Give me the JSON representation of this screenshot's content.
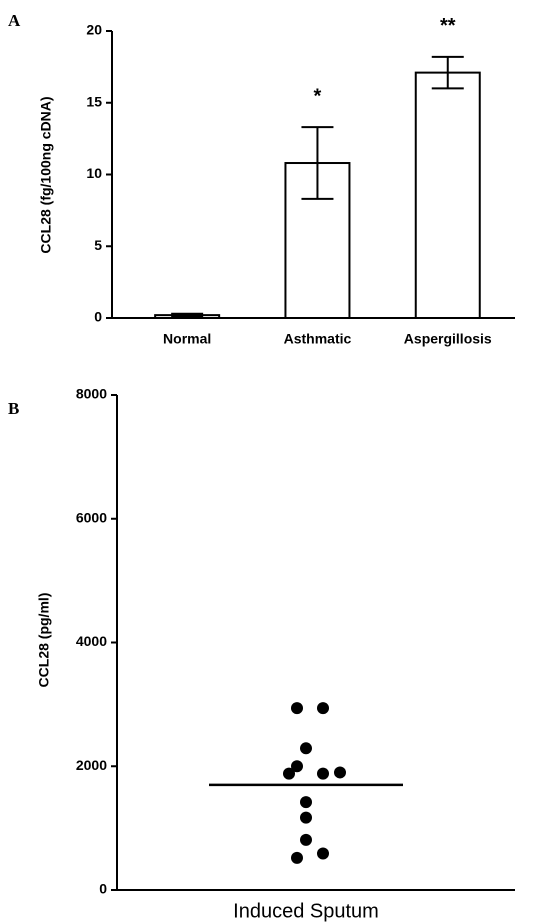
{
  "chart_data": [
    {
      "type": "bar",
      "panel_label": "A",
      "y_label": "CCL28 (fg/100ng cDNA)",
      "categories": [
        "Normal",
        "Asthmatic",
        "Aspergillosis"
      ],
      "values": [
        0.2,
        10.8,
        17.1
      ],
      "errors": [
        0.1,
        2.5,
        1.1
      ],
      "annotations": [
        null,
        "*",
        "**"
      ],
      "color": "#ffffff",
      "ylim": [
        0,
        20
      ],
      "yticks": [
        0,
        5,
        10,
        15,
        20
      ]
    },
    {
      "type": "scatter",
      "panel_label": "B",
      "y_label": "CCL28 (pg/ml)",
      "categories": [
        "Induced Sputum"
      ],
      "values": [
        2940,
        2940,
        2290,
        2000,
        1880,
        1880,
        1900,
        1420,
        1170,
        810,
        520,
        590
      ],
      "mean": 1700,
      "color": "#000000",
      "ylim": [
        0,
        8000
      ],
      "yticks": [
        0,
        2000,
        4000,
        6000,
        8000
      ]
    }
  ]
}
